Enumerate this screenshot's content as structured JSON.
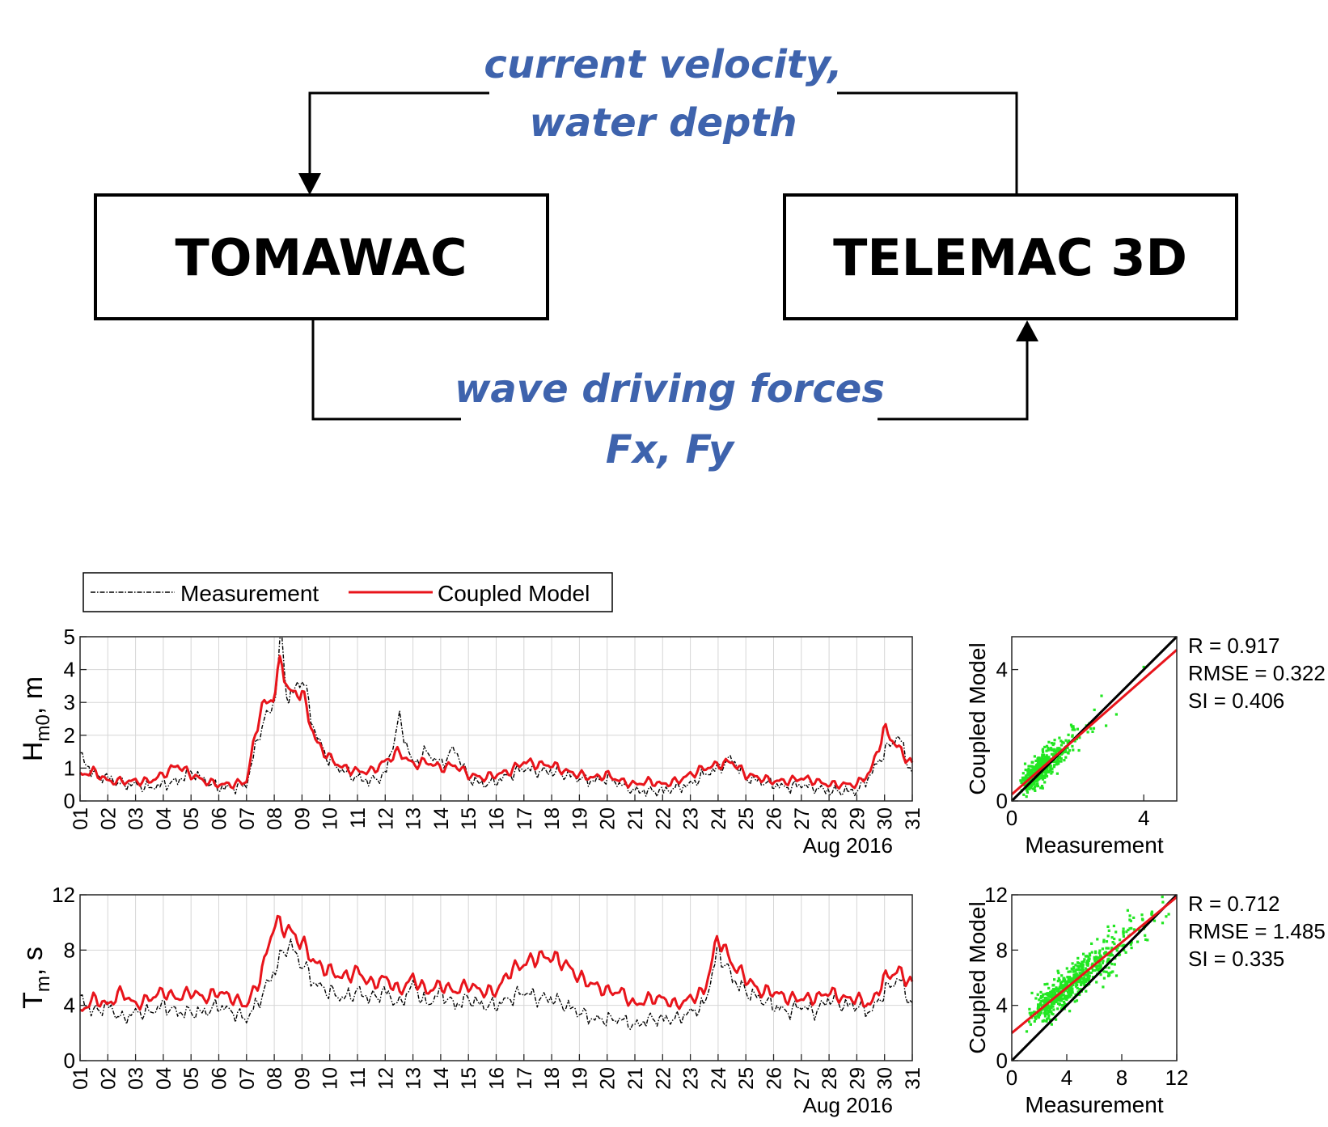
{
  "diagram": {
    "box_left": "TOMAWAC",
    "box_right": "TELEMAC 3D",
    "top_label_line1": "current velocity,",
    "top_label_line2": "water depth",
    "bottom_label_line1": "wave driving forces",
    "bottom_label_line2": "Fx, Fy",
    "label_color": "#3E63AD"
  },
  "legend": {
    "placement": "top-left",
    "items": [
      "Measurement",
      "Coupled Model"
    ]
  },
  "colors": {
    "measurement": "#000000",
    "model": "#E8141B",
    "scatter_points": "#22E622",
    "fit_line": "#E8141B",
    "one_to_one": "#000000"
  },
  "chart_data": [
    {
      "id": "hm0_timeseries",
      "type": "line",
      "ylabel_base": "H",
      "ylabel_sub": "m0",
      "ylabel_suffix": ", m",
      "date_label": "Aug 2016",
      "ylim": [
        0,
        5
      ],
      "yticks": [
        0,
        1,
        2,
        3,
        4,
        5
      ],
      "xlim": [
        "2016-08-01",
        "2016-08-31"
      ],
      "xticks": [
        "01",
        "02",
        "03",
        "04",
        "05",
        "06",
        "07",
        "08",
        "09",
        "10",
        "11",
        "12",
        "13",
        "14",
        "15",
        "16",
        "17",
        "18",
        "19",
        "20",
        "21",
        "22",
        "23",
        "24",
        "25",
        "26",
        "27",
        "28",
        "29",
        "30",
        "31"
      ],
      "grid": true,
      "series": [
        {
          "name": "Measurement",
          "x": [
            "2016-08-01",
            "2016-08-01 12:00",
            "2016-08-02",
            "2016-08-02 12:00",
            "2016-08-03",
            "2016-08-03 12:00",
            "2016-08-04",
            "2016-08-04 12:00",
            "2016-08-05",
            "2016-08-05 12:00",
            "2016-08-06",
            "2016-08-06 12:00",
            "2016-08-07",
            "2016-08-07 12:00",
            "2016-08-08",
            "2016-08-08 06:00",
            "2016-08-08 12:00",
            "2016-08-09",
            "2016-08-09 12:00",
            "2016-08-10",
            "2016-08-10 12:00",
            "2016-08-11",
            "2016-08-11 12:00",
            "2016-08-12",
            "2016-08-12 12:00",
            "2016-08-13",
            "2016-08-13 12:00",
            "2016-08-14",
            "2016-08-14 12:00",
            "2016-08-15",
            "2016-08-15 12:00",
            "2016-08-16",
            "2016-08-16 12:00",
            "2016-08-17",
            "2016-08-17 12:00",
            "2016-08-18",
            "2016-08-18 12:00",
            "2016-08-19",
            "2016-08-19 12:00",
            "2016-08-20",
            "2016-08-20 12:00",
            "2016-08-21",
            "2016-08-21 12:00",
            "2016-08-22",
            "2016-08-22 12:00",
            "2016-08-23",
            "2016-08-23 12:00",
            "2016-08-24",
            "2016-08-24 12:00",
            "2016-08-25",
            "2016-08-25 12:00",
            "2016-08-26",
            "2016-08-26 12:00",
            "2016-08-27",
            "2016-08-27 12:00",
            "2016-08-28",
            "2016-08-28 12:00",
            "2016-08-29",
            "2016-08-29 12:00",
            "2016-08-30",
            "2016-08-30 12:00",
            "2016-08-31"
          ],
          "values": [
            1.4,
            0.8,
            0.7,
            0.5,
            0.5,
            0.4,
            0.5,
            0.6,
            0.9,
            0.6,
            0.4,
            0.4,
            0.5,
            2.2,
            3.0,
            5.0,
            3.0,
            3.8,
            2.0,
            1.2,
            0.9,
            0.7,
            0.6,
            0.8,
            2.5,
            1.1,
            1.5,
            1.1,
            1.6,
            0.7,
            0.5,
            0.6,
            0.8,
            1.0,
            0.9,
            0.9,
            0.8,
            0.7,
            0.6,
            0.7,
            0.5,
            0.3,
            0.3,
            0.3,
            0.4,
            0.5,
            0.8,
            1.0,
            1.3,
            0.7,
            0.6,
            0.5,
            0.4,
            0.5,
            0.4,
            0.3,
            0.3,
            0.3,
            0.8,
            1.5,
            2.0,
            0.8
          ]
        },
        {
          "name": "Coupled Model",
          "x": [
            "2016-08-01",
            "2016-08-01 12:00",
            "2016-08-02",
            "2016-08-02 12:00",
            "2016-08-03",
            "2016-08-03 12:00",
            "2016-08-04",
            "2016-08-04 12:00",
            "2016-08-05",
            "2016-08-05 12:00",
            "2016-08-06",
            "2016-08-06 12:00",
            "2016-08-07",
            "2016-08-07 12:00",
            "2016-08-08",
            "2016-08-08 06:00",
            "2016-08-08 12:00",
            "2016-08-09",
            "2016-08-09 12:00",
            "2016-08-10",
            "2016-08-10 12:00",
            "2016-08-11",
            "2016-08-11 12:00",
            "2016-08-12",
            "2016-08-12 12:00",
            "2016-08-13",
            "2016-08-13 12:00",
            "2016-08-14",
            "2016-08-14 12:00",
            "2016-08-15",
            "2016-08-15 12:00",
            "2016-08-16",
            "2016-08-16 12:00",
            "2016-08-17",
            "2016-08-17 12:00",
            "2016-08-18",
            "2016-08-18 12:00",
            "2016-08-19",
            "2016-08-19 12:00",
            "2016-08-20",
            "2016-08-20 12:00",
            "2016-08-21",
            "2016-08-21 12:00",
            "2016-08-22",
            "2016-08-22 12:00",
            "2016-08-23",
            "2016-08-23 12:00",
            "2016-08-24",
            "2016-08-24 12:00",
            "2016-08-25",
            "2016-08-25 12:00",
            "2016-08-26",
            "2016-08-26 12:00",
            "2016-08-27",
            "2016-08-27 12:00",
            "2016-08-28",
            "2016-08-28 12:00",
            "2016-08-29",
            "2016-08-29 12:00",
            "2016-08-30",
            "2016-08-30 12:00",
            "2016-08-31"
          ],
          "values": [
            0.8,
            0.9,
            0.6,
            0.6,
            0.6,
            0.6,
            0.8,
            1.1,
            0.8,
            0.6,
            0.5,
            0.5,
            0.6,
            2.8,
            3.2,
            4.4,
            3.3,
            3.3,
            1.8,
            1.3,
            1.0,
            0.9,
            0.9,
            1.2,
            1.5,
            1.1,
            1.2,
            1.0,
            1.1,
            0.8,
            0.7,
            0.8,
            0.9,
            1.2,
            1.1,
            1.1,
            0.9,
            0.8,
            0.7,
            0.8,
            0.6,
            0.5,
            0.6,
            0.5,
            0.6,
            0.8,
            1.0,
            1.1,
            1.2,
            0.8,
            0.7,
            0.6,
            0.6,
            0.7,
            0.6,
            0.5,
            0.5,
            0.5,
            0.9,
            2.2,
            1.6,
            1.1
          ]
        }
      ]
    },
    {
      "id": "hm0_scatter",
      "type": "scatter",
      "xlabel": "Measurement",
      "ylabel": "Coupled Model",
      "xlim": [
        0,
        5
      ],
      "ylim": [
        0,
        5
      ],
      "xticks": [
        0,
        4
      ],
      "yticks": [
        0,
        4
      ],
      "cluster": {
        "mean_x": 0.9,
        "mean_y": 0.95,
        "count": 460
      },
      "fit_line": {
        "slope": 0.88,
        "intercept": 0.2
      },
      "stats": [
        "R = 0.917",
        "RMSE = 0.322",
        "SI = 0.406"
      ]
    },
    {
      "id": "tm_timeseries",
      "type": "line",
      "ylabel_base": "T",
      "ylabel_sub": "m",
      "ylabel_suffix": ", s",
      "date_label": "Aug 2016",
      "ylim": [
        0,
        12
      ],
      "yticks": [
        0,
        4,
        8,
        12
      ],
      "xlim": [
        "2016-08-01",
        "2016-08-31"
      ],
      "xticks": [
        "01",
        "02",
        "03",
        "04",
        "05",
        "06",
        "07",
        "08",
        "09",
        "10",
        "11",
        "12",
        "13",
        "14",
        "15",
        "16",
        "17",
        "18",
        "19",
        "20",
        "21",
        "22",
        "23",
        "24",
        "25",
        "26",
        "27",
        "28",
        "29",
        "30",
        "31"
      ],
      "grid": true,
      "series": [
        {
          "name": "Measurement",
          "x": [
            "2016-08-01",
            "2016-08-01 12:00",
            "2016-08-02",
            "2016-08-02 12:00",
            "2016-08-03",
            "2016-08-03 12:00",
            "2016-08-04",
            "2016-08-04 12:00",
            "2016-08-05",
            "2016-08-05 12:00",
            "2016-08-06",
            "2016-08-06 12:00",
            "2016-08-07",
            "2016-08-07 12:00",
            "2016-08-08",
            "2016-08-08 12:00",
            "2016-08-09",
            "2016-08-09 12:00",
            "2016-08-10",
            "2016-08-10 12:00",
            "2016-08-11",
            "2016-08-11 12:00",
            "2016-08-12",
            "2016-08-12 12:00",
            "2016-08-13",
            "2016-08-13 12:00",
            "2016-08-14",
            "2016-08-14 12:00",
            "2016-08-15",
            "2016-08-15 12:00",
            "2016-08-16",
            "2016-08-16 12:00",
            "2016-08-17",
            "2016-08-17 12:00",
            "2016-08-18",
            "2016-08-18 12:00",
            "2016-08-19",
            "2016-08-19 12:00",
            "2016-08-20",
            "2016-08-20 12:00",
            "2016-08-21",
            "2016-08-21 12:00",
            "2016-08-22",
            "2016-08-22 12:00",
            "2016-08-23",
            "2016-08-23 12:00",
            "2016-08-24",
            "2016-08-24 12:00",
            "2016-08-25",
            "2016-08-25 12:00",
            "2016-08-26",
            "2016-08-26 12:00",
            "2016-08-27",
            "2016-08-27 12:00",
            "2016-08-28",
            "2016-08-28 12:00",
            "2016-08-29",
            "2016-08-29 12:00",
            "2016-08-30",
            "2016-08-30 12:00",
            "2016-08-31"
          ],
          "values": [
            4.5,
            3.5,
            4.0,
            3.0,
            3.5,
            3.5,
            4.0,
            3.5,
            3.5,
            3.5,
            4.0,
            3.5,
            3.0,
            4.5,
            6.5,
            8.5,
            7.0,
            5.5,
            5.0,
            4.5,
            5.0,
            4.5,
            5.0,
            4.0,
            5.5,
            4.0,
            5.0,
            4.0,
            4.5,
            4.0,
            4.0,
            4.5,
            5.0,
            4.5,
            4.5,
            4.0,
            3.5,
            3.0,
            3.0,
            3.0,
            2.5,
            3.0,
            3.0,
            3.0,
            3.5,
            4.0,
            8.0,
            6.0,
            5.0,
            4.5,
            4.0,
            3.5,
            4.0,
            3.5,
            4.5,
            4.0,
            4.0,
            3.5,
            5.0,
            6.0,
            4.0
          ]
        },
        {
          "name": "Coupled Model",
          "x": [
            "2016-08-01",
            "2016-08-01 12:00",
            "2016-08-02",
            "2016-08-02 12:00",
            "2016-08-03",
            "2016-08-03 12:00",
            "2016-08-04",
            "2016-08-04 12:00",
            "2016-08-05",
            "2016-08-05 12:00",
            "2016-08-06",
            "2016-08-06 12:00",
            "2016-08-07",
            "2016-08-07 12:00",
            "2016-08-08",
            "2016-08-08 12:00",
            "2016-08-09",
            "2016-08-09 12:00",
            "2016-08-10",
            "2016-08-10 12:00",
            "2016-08-11",
            "2016-08-11 12:00",
            "2016-08-12",
            "2016-08-12 12:00",
            "2016-08-13",
            "2016-08-13 12:00",
            "2016-08-14",
            "2016-08-14 12:00",
            "2016-08-15",
            "2016-08-15 12:00",
            "2016-08-16",
            "2016-08-16 12:00",
            "2016-08-17",
            "2016-08-17 12:00",
            "2016-08-18",
            "2016-08-18 12:00",
            "2016-08-19",
            "2016-08-19 12:00",
            "2016-08-20",
            "2016-08-20 12:00",
            "2016-08-21",
            "2016-08-21 12:00",
            "2016-08-22",
            "2016-08-22 12:00",
            "2016-08-23",
            "2016-08-23 12:00",
            "2016-08-24",
            "2016-08-24 12:00",
            "2016-08-25",
            "2016-08-25 12:00",
            "2016-08-26",
            "2016-08-26 12:00",
            "2016-08-27",
            "2016-08-27 12:00",
            "2016-08-28",
            "2016-08-28 12:00",
            "2016-08-29",
            "2016-08-29 12:00",
            "2016-08-30",
            "2016-08-30 12:00",
            "2016-08-31"
          ],
          "values": [
            3.5,
            4.5,
            4.0,
            5.0,
            4.0,
            4.5,
            5.0,
            4.5,
            5.0,
            4.5,
            5.0,
            4.5,
            4.0,
            6.0,
            10.0,
            9.5,
            8.5,
            7.0,
            6.5,
            6.0,
            6.5,
            5.5,
            6.0,
            5.0,
            6.0,
            5.0,
            5.5,
            5.0,
            5.5,
            5.0,
            5.0,
            6.5,
            7.0,
            7.5,
            7.5,
            7.0,
            6.0,
            5.5,
            5.0,
            5.0,
            4.0,
            4.5,
            4.5,
            4.0,
            4.5,
            5.0,
            9.0,
            7.0,
            6.0,
            5.0,
            5.0,
            4.5,
            4.5,
            4.5,
            5.0,
            4.5,
            4.5,
            4.0,
            6.0,
            6.5,
            5.5
          ]
        }
      ]
    },
    {
      "id": "tm_scatter",
      "type": "scatter",
      "xlabel": "Measurement",
      "ylabel": "Coupled Model",
      "xlim": [
        0,
        12
      ],
      "ylim": [
        0,
        12
      ],
      "xticks": [
        0,
        4,
        8,
        12
      ],
      "yticks": [
        0,
        4,
        8,
        12
      ],
      "cluster": {
        "mean_x": 4.2,
        "mean_y": 5.4,
        "count": 700
      },
      "fit_line": {
        "slope": 0.82,
        "intercept": 2.0
      },
      "stats": [
        "R = 0.712",
        "RMSE = 1.485",
        "SI = 0.335"
      ]
    }
  ]
}
